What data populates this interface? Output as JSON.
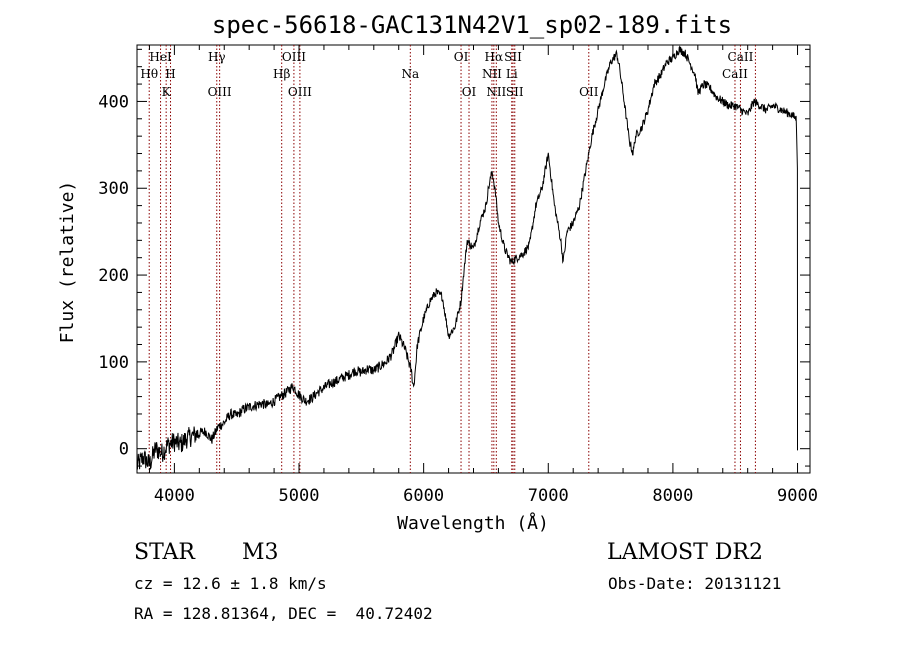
{
  "chart_data": {
    "type": "line",
    "title": "spec-56618-GAC131N42V1_sp02-189.fits",
    "xlabel": "Wavelength (Å)",
    "ylabel": "Flux (relative)",
    "xlim": [
      3700,
      9100
    ],
    "ylim": [
      -28,
      465
    ],
    "xticks": [
      4000,
      5000,
      6000,
      7000,
      8000,
      9000
    ],
    "yticks": [
      0,
      100,
      200,
      300,
      400
    ],
    "grid": false,
    "line_color": "#000000",
    "marker_color": "#8b0000",
    "spectrum": {
      "x": [
        3700,
        3750,
        3800,
        3850,
        3900,
        3950,
        4000,
        4050,
        4100,
        4150,
        4200,
        4250,
        4300,
        4350,
        4400,
        4450,
        4500,
        4550,
        4600,
        4650,
        4700,
        4750,
        4800,
        4850,
        4900,
        4950,
        5000,
        5050,
        5100,
        5150,
        5200,
        5250,
        5300,
        5350,
        5400,
        5450,
        5500,
        5550,
        5600,
        5650,
        5700,
        5750,
        5800,
        5850,
        5900,
        5920,
        5950,
        6000,
        6050,
        6100,
        6150,
        6200,
        6250,
        6300,
        6320,
        6350,
        6400,
        6450,
        6500,
        6520,
        6550,
        6580,
        6600,
        6650,
        6700,
        6750,
        6800,
        6850,
        6900,
        6950,
        7000,
        7050,
        7100,
        7120,
        7150,
        7200,
        7250,
        7300,
        7350,
        7400,
        7450,
        7500,
        7550,
        7570,
        7600,
        7650,
        7680,
        7700,
        7750,
        7800,
        7850,
        7900,
        7950,
        8000,
        8050,
        8100,
        8150,
        8180,
        8200,
        8250,
        8300,
        8350,
        8400,
        8450,
        8500,
        8550,
        8600,
        8650,
        8700,
        8750,
        8800,
        8850,
        8900,
        8950,
        8990,
        9000
      ],
      "y": [
        -20,
        -10,
        -18,
        0,
        -5,
        5,
        8,
        5,
        12,
        15,
        18,
        20,
        10,
        25,
        30,
        40,
        38,
        45,
        48,
        50,
        52,
        50,
        55,
        60,
        65,
        72,
        62,
        55,
        58,
        65,
        70,
        75,
        78,
        82,
        85,
        90,
        88,
        92,
        90,
        95,
        100,
        110,
        130,
        115,
        90,
        70,
        120,
        150,
        170,
        180,
        175,
        130,
        140,
        170,
        200,
        240,
        230,
        260,
        280,
        300,
        320,
        290,
        260,
        230,
        215,
        220,
        225,
        235,
        280,
        300,
        340,
        280,
        240,
        215,
        250,
        260,
        280,
        320,
        360,
        390,
        420,
        445,
        455,
        440,
        410,
        355,
        340,
        360,
        370,
        390,
        420,
        430,
        445,
        450,
        460,
        455,
        440,
        430,
        410,
        420,
        415,
        405,
        400,
        395,
        395,
        390,
        385,
        400,
        395,
        390,
        395,
        392,
        388,
        385,
        380,
        320
      ]
    },
    "lines": [
      {
        "x": 3798,
        "label": "Hθ",
        "row": 2
      },
      {
        "x": 3889,
        "label": "HeI",
        "row": 1
      },
      {
        "x": 3934,
        "label": "K",
        "row": 3
      },
      {
        "x": 3969,
        "label": "H",
        "row": 2
      },
      {
        "x": 4340,
        "label": "Hγ",
        "row": 1
      },
      {
        "x": 4363,
        "label": "OIII",
        "row": 3
      },
      {
        "x": 4861,
        "label": "Hβ",
        "row": 2
      },
      {
        "x": 4959,
        "label": "OIII",
        "row": 1
      },
      {
        "x": 5007,
        "label": "OIII",
        "row": 3
      },
      {
        "x": 5893,
        "label": "Na",
        "row": 2
      },
      {
        "x": 6300,
        "label": "OI",
        "row": 1
      },
      {
        "x": 6364,
        "label": "OI",
        "row": 3
      },
      {
        "x": 6548,
        "label": "NII",
        "row": 2
      },
      {
        "x": 6563,
        "label": "Hα",
        "row": 1
      },
      {
        "x": 6583,
        "label": "NII",
        "row": 3
      },
      {
        "x": 6707,
        "label": "Li",
        "row": 2
      },
      {
        "x": 6717,
        "label": "SII",
        "row": 1
      },
      {
        "x": 6731,
        "label": "SII",
        "row": 3
      },
      {
        "x": 7325,
        "label": "OII",
        "row": 3
      },
      {
        "x": 8498,
        "label": "CaII",
        "row": 2
      },
      {
        "x": 8542,
        "label": "CaII",
        "row": 1
      },
      {
        "x": 8662,
        "label": "",
        "row": 0
      }
    ]
  },
  "info": {
    "object_class": "STAR",
    "subclass": "M3",
    "survey": "LAMOST DR2",
    "cz": "cz = 12.6 ± 1.8 km/s",
    "obs_date": "Obs-Date: 20131121",
    "coords": "RA = 128.81364, DEC =  40.72402"
  }
}
